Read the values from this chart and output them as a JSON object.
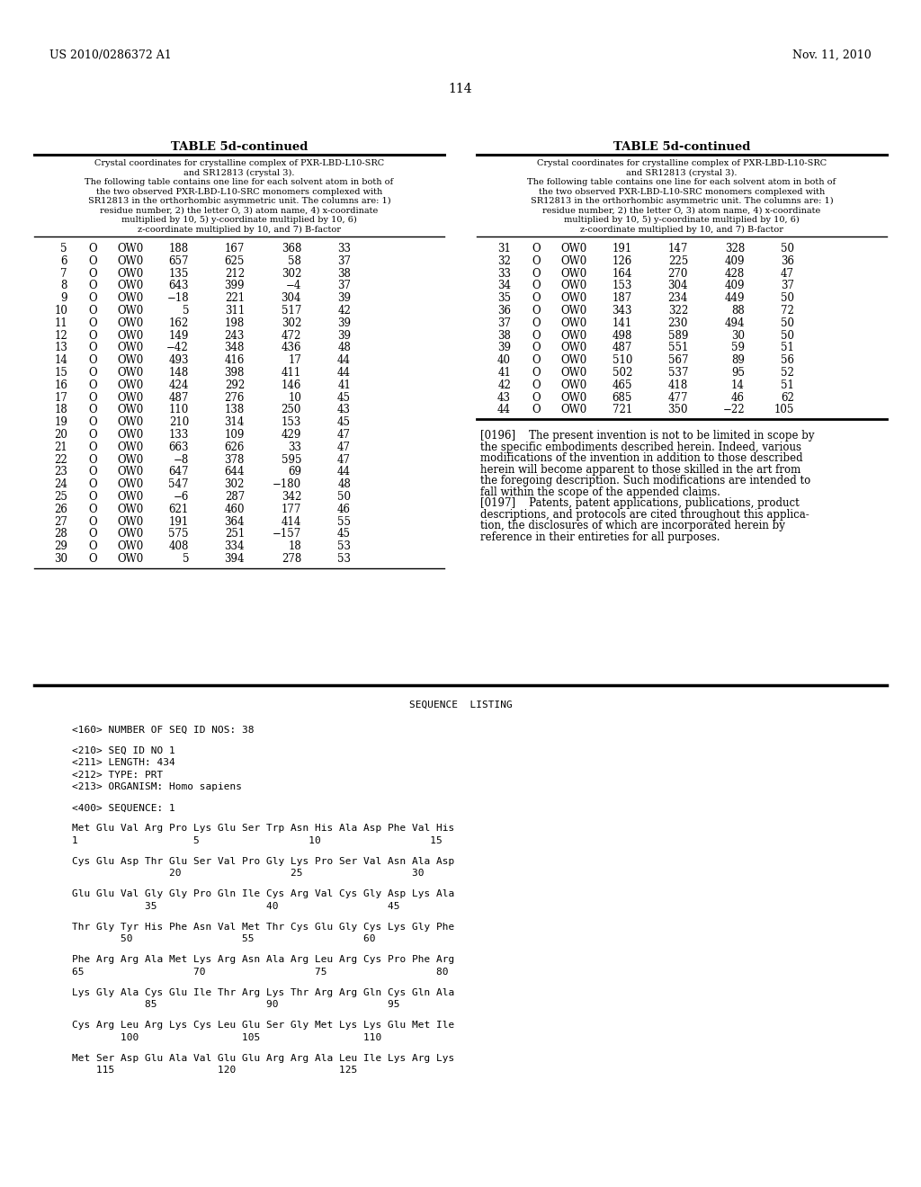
{
  "background_color": "#ffffff",
  "header_left": "US 2010/0286372 A1",
  "header_right": "Nov. 11, 2010",
  "page_number": "114",
  "table_title": "TABLE 5d-continued",
  "table_caption_lines": [
    "Crystal coordinates for crystalline complex of PXR-LBD-L10-SRC",
    "and SR12813 (crystal 3).",
    "The following table contains one line for each solvent atom in both of",
    "the two observed PXR-LBD-L10-SRC monomers complexed with",
    "SR12813 in the orthorhombic asymmetric unit. The columns are: 1)",
    "residue number, 2) the letter O, 3) atom name, 4) x-coordinate",
    "multiplied by 10, 5) y-coordinate multiplied by 10, 6)",
    "z-coordinate multiplied by 10, and 7) B-factor"
  ],
  "left_table_data": [
    [
      "5",
      "O",
      "OW0",
      "188",
      "167",
      "368",
      "33"
    ],
    [
      "6",
      "O",
      "OW0",
      "657",
      "625",
      "58",
      "37"
    ],
    [
      "7",
      "O",
      "OW0",
      "135",
      "212",
      "302",
      "38"
    ],
    [
      "8",
      "O",
      "OW0",
      "643",
      "399",
      "−4",
      "37"
    ],
    [
      "9",
      "O",
      "OW0",
      "−18",
      "221",
      "304",
      "39"
    ],
    [
      "10",
      "O",
      "OW0",
      "5",
      "311",
      "517",
      "42"
    ],
    [
      "11",
      "O",
      "OW0",
      "162",
      "198",
      "302",
      "39"
    ],
    [
      "12",
      "O",
      "OW0",
      "149",
      "243",
      "472",
      "39"
    ],
    [
      "13",
      "O",
      "OW0",
      "−42",
      "348",
      "436",
      "48"
    ],
    [
      "14",
      "O",
      "OW0",
      "493",
      "416",
      "17",
      "44"
    ],
    [
      "15",
      "O",
      "OW0",
      "148",
      "398",
      "411",
      "44"
    ],
    [
      "16",
      "O",
      "OW0",
      "424",
      "292",
      "146",
      "41"
    ],
    [
      "17",
      "O",
      "OW0",
      "487",
      "276",
      "10",
      "45"
    ],
    [
      "18",
      "O",
      "OW0",
      "110",
      "138",
      "250",
      "43"
    ],
    [
      "19",
      "O",
      "OW0",
      "210",
      "314",
      "153",
      "45"
    ],
    [
      "20",
      "O",
      "OW0",
      "133",
      "109",
      "429",
      "47"
    ],
    [
      "21",
      "O",
      "OW0",
      "663",
      "626",
      "33",
      "47"
    ],
    [
      "22",
      "O",
      "OW0",
      "−8",
      "378",
      "595",
      "47"
    ],
    [
      "23",
      "O",
      "OW0",
      "647",
      "644",
      "69",
      "44"
    ],
    [
      "24",
      "O",
      "OW0",
      "547",
      "302",
      "−180",
      "48"
    ],
    [
      "25",
      "O",
      "OW0",
      "−6",
      "287",
      "342",
      "50"
    ],
    [
      "26",
      "O",
      "OW0",
      "621",
      "460",
      "177",
      "46"
    ],
    [
      "27",
      "O",
      "OW0",
      "191",
      "364",
      "414",
      "55"
    ],
    [
      "28",
      "O",
      "OW0",
      "575",
      "251",
      "−157",
      "45"
    ],
    [
      "29",
      "O",
      "OW0",
      "408",
      "334",
      "18",
      "53"
    ],
    [
      "30",
      "O",
      "OW0",
      "5",
      "394",
      "278",
      "53"
    ]
  ],
  "right_table_data": [
    [
      "31",
      "O",
      "OW0",
      "191",
      "147",
      "328",
      "50"
    ],
    [
      "32",
      "O",
      "OW0",
      "126",
      "225",
      "409",
      "36"
    ],
    [
      "33",
      "O",
      "OW0",
      "164",
      "270",
      "428",
      "47"
    ],
    [
      "34",
      "O",
      "OW0",
      "153",
      "304",
      "409",
      "37"
    ],
    [
      "35",
      "O",
      "OW0",
      "187",
      "234",
      "449",
      "50"
    ],
    [
      "36",
      "O",
      "OW0",
      "343",
      "322",
      "88",
      "72"
    ],
    [
      "37",
      "O",
      "OW0",
      "141",
      "230",
      "494",
      "50"
    ],
    [
      "38",
      "O",
      "OW0",
      "498",
      "589",
      "30",
      "50"
    ],
    [
      "39",
      "O",
      "OW0",
      "487",
      "551",
      "59",
      "51"
    ],
    [
      "40",
      "O",
      "OW0",
      "510",
      "567",
      "89",
      "56"
    ],
    [
      "41",
      "O",
      "OW0",
      "502",
      "537",
      "95",
      "52"
    ],
    [
      "42",
      "O",
      "OW0",
      "465",
      "418",
      "14",
      "51"
    ],
    [
      "43",
      "O",
      "OW0",
      "685",
      "477",
      "46",
      "62"
    ],
    [
      "44",
      "O",
      "OW0",
      "721",
      "350",
      "−22",
      "105"
    ]
  ],
  "paragraph_196_lines": [
    "[0196]    The present invention is not to be limited in scope by",
    "the specific embodiments described herein. Indeed, various",
    "modifications of the invention in addition to those described",
    "herein will become apparent to those skilled in the art from",
    "the foregoing description. Such modifications are intended to",
    "fall within the scope of the appended claims."
  ],
  "paragraph_197_lines": [
    "[0197]    Patents, patent applications, publications, product",
    "descriptions, and protocols are cited throughout this applica-",
    "tion, the disclosures of which are incorporated herein by",
    "reference in their entireties for all purposes."
  ],
  "seq_listing_title": "SEQUENCE  LISTING",
  "seq_lines": [
    "<160> NUMBER OF SEQ ID NOS: 38",
    "",
    "<210> SEQ ID NO 1",
    "<211> LENGTH: 434",
    "<212> TYPE: PRT",
    "<213> ORGANISM: Homo sapiens",
    "",
    "<400> SEQUENCE: 1",
    "",
    "Met Glu Val Arg Pro Lys Glu Ser Trp Asn His Ala Asp Phe Val His",
    "1                   5                  10                  15",
    "",
    "Cys Glu Asp Thr Glu Ser Val Pro Gly Lys Pro Ser Val Asn Ala Asp",
    "                20                  25                  30",
    "",
    "Glu Glu Val Gly Gly Pro Gln Ile Cys Arg Val Cys Gly Asp Lys Ala",
    "            35                  40                  45",
    "",
    "Thr Gly Tyr His Phe Asn Val Met Thr Cys Glu Gly Cys Lys Gly Phe",
    "        50                  55                  60",
    "",
    "Phe Arg Arg Ala Met Lys Arg Asn Ala Arg Leu Arg Cys Pro Phe Arg",
    "65                  70                  75                  80",
    "",
    "Lys Gly Ala Cys Glu Ile Thr Arg Lys Thr Arg Arg Gln Cys Gln Ala",
    "            85                  90                  95",
    "",
    "Cys Arg Leu Arg Lys Cys Leu Glu Ser Gly Met Lys Lys Glu Met Ile",
    "        100                 105                 110",
    "",
    "Met Ser Asp Glu Ala Val Glu Glu Arg Arg Ala Leu Ile Lys Arg Lys",
    "    115                 120                 125"
  ]
}
